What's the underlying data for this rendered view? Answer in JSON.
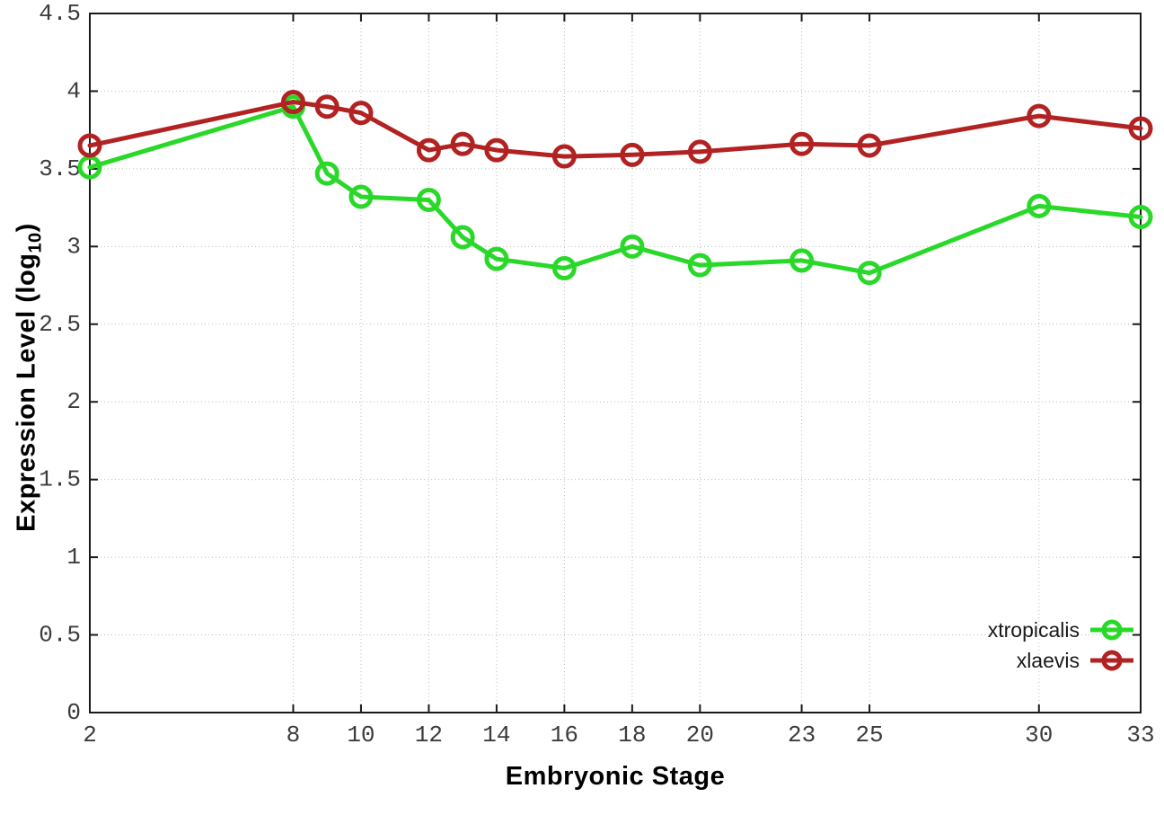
{
  "colors": {
    "background": "#ffffff",
    "axis_border": "#1a1a1a",
    "grid": "#bdbdbd",
    "tick_text": "#3c3c3c",
    "series_green": "#29d829",
    "series_red": "#b22222"
  },
  "chart_data": {
    "type": "line",
    "title": "",
    "xlabel": "Embryonic Stage",
    "ylabel": "Expression Level (log10)",
    "ylabel_parts": {
      "prefix": "Expression Level (log",
      "sub": "10",
      "suffix": ")"
    },
    "xlim": [
      2,
      33
    ],
    "ylim": [
      0,
      4.5
    ],
    "xticks": [
      2,
      8,
      10,
      12,
      14,
      16,
      18,
      20,
      23,
      25,
      30,
      33
    ],
    "yticks": [
      0,
      0.5,
      1,
      1.5,
      2,
      2.5,
      3,
      3.5,
      4,
      4.5
    ],
    "grid": true,
    "legend_position": "bottom-right",
    "marker": "open-circle",
    "x": [
      2,
      8,
      9,
      10,
      12,
      13,
      14,
      16,
      18,
      20,
      23,
      25,
      30,
      33
    ],
    "series": [
      {
        "name": "xtropicalis",
        "color": "#29d829",
        "values": [
          3.51,
          3.9,
          3.47,
          3.32,
          3.3,
          3.06,
          2.92,
          2.86,
          3.0,
          2.88,
          2.91,
          2.83,
          3.26,
          3.19
        ]
      },
      {
        "name": "xlaevis",
        "color": "#b22222",
        "values": [
          3.65,
          3.93,
          3.9,
          3.86,
          3.62,
          3.66,
          3.62,
          3.58,
          3.59,
          3.61,
          3.66,
          3.65,
          3.84,
          3.76
        ]
      }
    ]
  }
}
